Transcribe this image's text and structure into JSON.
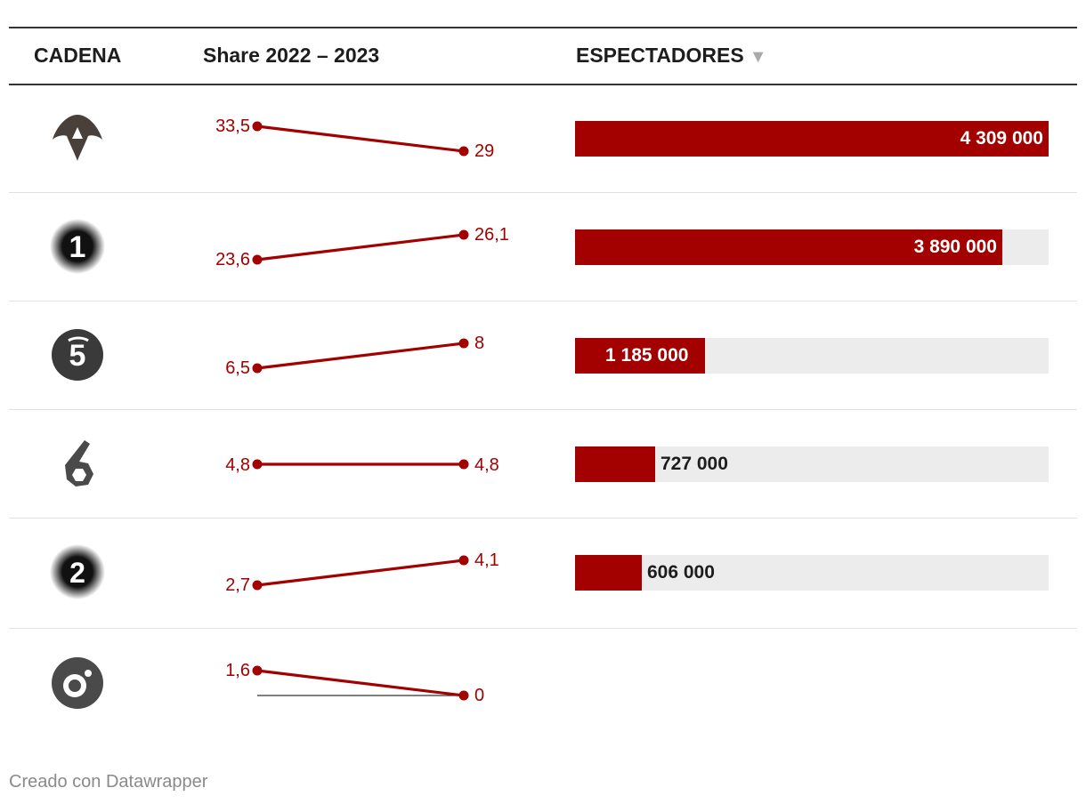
{
  "header": {
    "col_channel": "CADENA",
    "col_share": "Share 2022 – 2023",
    "col_viewers": "ESPECTADORES",
    "sort_icon": "sort-desc-triangle-icon"
  },
  "colors": {
    "accent": "#a30000",
    "bar_track": "#ececec",
    "rule": "#333333",
    "separator": "#e2e2e2"
  },
  "chart_data": {
    "type": "table",
    "columns": [
      "CADENA",
      "Share 2022 – 2023",
      "ESPECTADORES"
    ],
    "share_axis_min": 0,
    "share_axis_max": 34,
    "viewers_max": 4309000,
    "rows": [
      {
        "logo": "antena3-logo",
        "share_2022": 33.5,
        "share_2023": 29,
        "label_2022": "33,5",
        "label_2023": "29",
        "viewers": 4309000,
        "viewers_label": "4 309 000"
      },
      {
        "logo": "la1-logo",
        "share_2022": 23.6,
        "share_2023": 26.1,
        "label_2022": "23,6",
        "label_2023": "26,1",
        "viewers": 3890000,
        "viewers_label": "3 890 000"
      },
      {
        "logo": "telecinco-logo",
        "share_2022": 6.5,
        "share_2023": 8,
        "label_2022": "6,5",
        "label_2023": "8",
        "viewers": 1185000,
        "viewers_label": "1 185 000"
      },
      {
        "logo": "lasexta-logo",
        "share_2022": 4.8,
        "share_2023": 4.8,
        "label_2022": "4,8",
        "label_2023": "4,8",
        "viewers": 727000,
        "viewers_label": "727 000"
      },
      {
        "logo": "la2-logo",
        "share_2022": 2.7,
        "share_2023": 4.1,
        "label_2022": "2,7",
        "label_2023": "4,1",
        "viewers": 606000,
        "viewers_label": "606 000"
      },
      {
        "logo": "cuatro-logo",
        "share_2022": 1.6,
        "share_2023": 0,
        "label_2022": "1,6",
        "label_2023": "0",
        "viewers": null,
        "viewers_label": ""
      }
    ]
  },
  "footer": {
    "credit": "Creado con Datawrapper"
  }
}
